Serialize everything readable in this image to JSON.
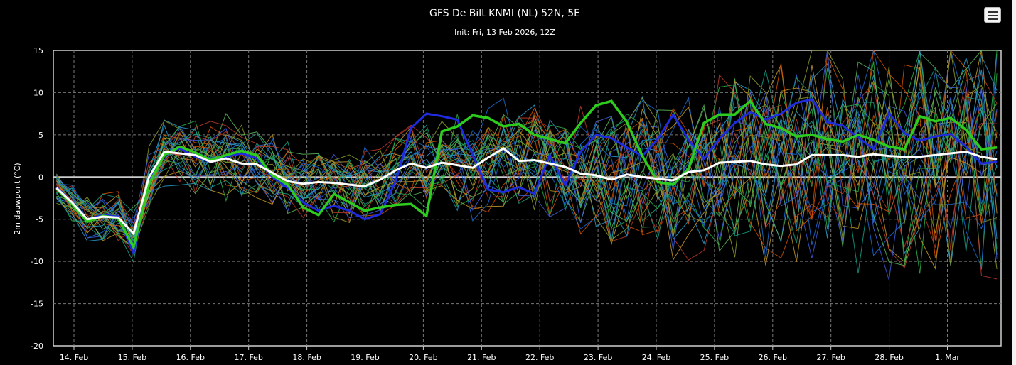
{
  "chart_data": {
    "type": "line",
    "title": "GFS De Bilt KNMI (NL) 52N, 5E",
    "subtitle": "Init: Fri, 13 Feb 2026, 12Z",
    "xlabel": "",
    "ylabel": "2m dauwpunt (°C)",
    "ylim": [
      -20,
      15
    ],
    "yticks": [
      "15",
      "10",
      "5",
      "0",
      "-5",
      "-10",
      "-15",
      "-20"
    ],
    "xticks": [
      "14. Feb",
      "15. Feb",
      "16. Feb",
      "17. Feb",
      "18. Feb",
      "19. Feb",
      "20. Feb",
      "21. Feb",
      "22. Feb",
      "23. Feb",
      "24. Feb",
      "25. Feb",
      "26. Feb",
      "27. Feb",
      "28. Feb",
      "1. Mar"
    ],
    "x_range_days": [
      13.7,
      29.85
    ],
    "grid": true,
    "colors": {
      "background": "#000000",
      "grid": "#777777",
      "text": "#ffffff",
      "mean": "#ffffff",
      "control": "#2ecc1e",
      "operational": "#1f2bdc",
      "zero_line": "#cccccc"
    },
    "mean_series": [
      -1.3,
      -3,
      -5,
      -4.7,
      -4.8,
      -6.7,
      0,
      3,
      2.8,
      2.6,
      1.8,
      2.2,
      1.6,
      1.5,
      0.5,
      -0.5,
      -0.8,
      -0.6,
      -0.7,
      -0.9,
      -1.1,
      -0.3,
      0.8,
      1.6,
      1.1,
      1.7,
      1.4,
      1.1,
      2.3,
      3.4,
      1.9,
      2,
      1.6,
      1.2,
      0.4,
      0.2,
      -0.3,
      0.3,
      0,
      -0.2,
      -0.4,
      0.6,
      0.8,
      1.7,
      1.8,
      1.9,
      1.5,
      1.3,
      1.5,
      2.6,
      2.6,
      2.6,
      2.4,
      2.7,
      2.5,
      2.4,
      2.4,
      2.6,
      2.8,
      3,
      2.4,
      2.1
    ],
    "control_series": [
      -1.4,
      -3.2,
      -5.3,
      -4.6,
      -4.9,
      -8.3,
      -0.8,
      2.6,
      3.6,
      2.9,
      2,
      2.6,
      3.1,
      2.6,
      0.2,
      -0.9,
      -3.6,
      -4.5,
      -2,
      -3,
      -4,
      -3.6,
      -3.3,
      -3.2,
      -4.6,
      5.4,
      6,
      7.3,
      7,
      6,
      6.3,
      5,
      4.5,
      4,
      6.4,
      8.5,
      9,
      6.5,
      2.5,
      -0.6,
      -0.9,
      1,
      6.4,
      7.4,
      7.4,
      9,
      6.3,
      5.8,
      4.8,
      5,
      4.5,
      4.2,
      5,
      4.4,
      3.6,
      3.3,
      7.2,
      6.6,
      7,
      5.6,
      3.3,
      3.5
    ],
    "operational_series": [
      -1.2,
      -3,
      -5,
      -4.5,
      -4.7,
      -9,
      -0.4,
      2.8,
      3.4,
      2.4,
      1.8,
      2.4,
      2.8,
      2.2,
      0,
      -1.3,
      -3,
      -4,
      -3.4,
      -4,
      -5,
      -4.4,
      -0.5,
      5.8,
      7.5,
      7.2,
      6.8,
      2.6,
      -1.5,
      -1.8,
      -1.2,
      -2,
      2.6,
      -1,
      3,
      5,
      4.6,
      3.5,
      2.5,
      4.5,
      7.4,
      4.4,
      2.2,
      4.5,
      6.4,
      7.7,
      6.8,
      7.5,
      8.8,
      9.2,
      6.5,
      6.1,
      4.7,
      3.3,
      7.6,
      5.2,
      4.3,
      4.8,
      5.1,
      3.6,
      1.6,
      1.8
    ],
    "ensemble_count": 30,
    "ensemble_colors": [
      "#1b6fd6",
      "#2bb04a",
      "#c0392b",
      "#c49a28",
      "#2a9dcf",
      "#5cb85c",
      "#d35400",
      "#8e9e2a",
      "#3f5fe0",
      "#16a085"
    ]
  }
}
